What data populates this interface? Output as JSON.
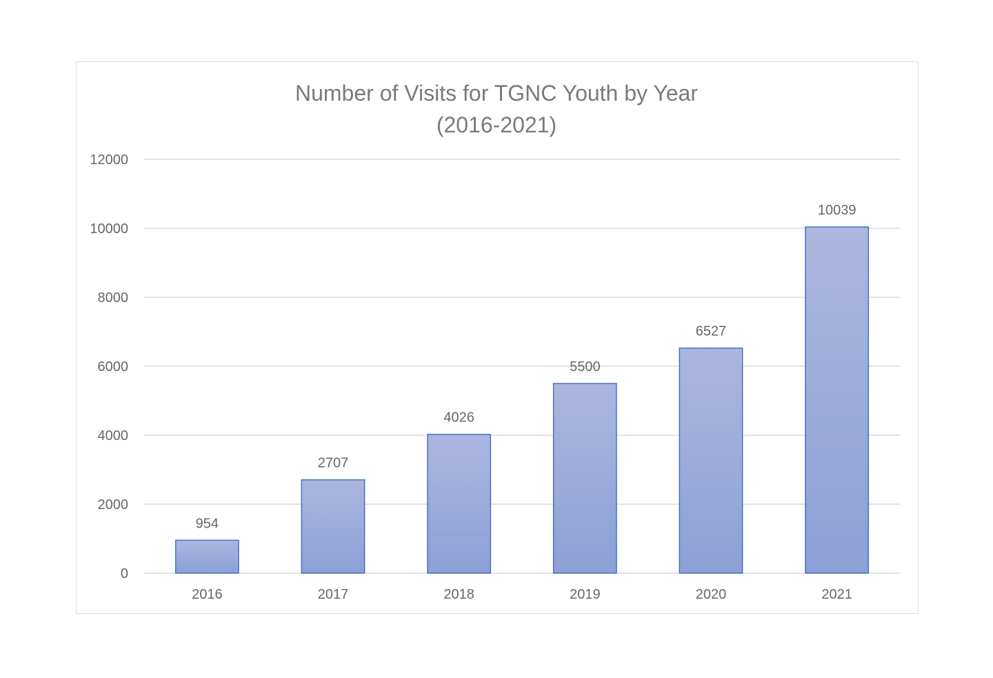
{
  "chart_data": {
    "type": "bar",
    "title": "Number of Visits for TGNC Youth by Year",
    "subtitle": "(2016-2021)",
    "categories": [
      "2016",
      "2017",
      "2018",
      "2019",
      "2020",
      "2021"
    ],
    "values": [
      954,
      2707,
      4026,
      5500,
      6527,
      10039
    ],
    "data_labels": [
      "954",
      "2707",
      "4026",
      "5500",
      "6527",
      "10039"
    ],
    "xlabel": "",
    "ylabel": "",
    "ylim": [
      0,
      12000
    ],
    "yticks": [
      "0",
      "2000",
      "4000",
      "6000",
      "8000",
      "10000",
      "12000"
    ],
    "grid": true,
    "legend": "none",
    "colors": {
      "bar_fill_top": "#aab7df",
      "bar_fill_bottom": "#8ca0d6",
      "bar_stroke": "#4472c4",
      "grid": "#d9d9d9",
      "text": "#666666",
      "title": "#7a7a7a"
    }
  }
}
